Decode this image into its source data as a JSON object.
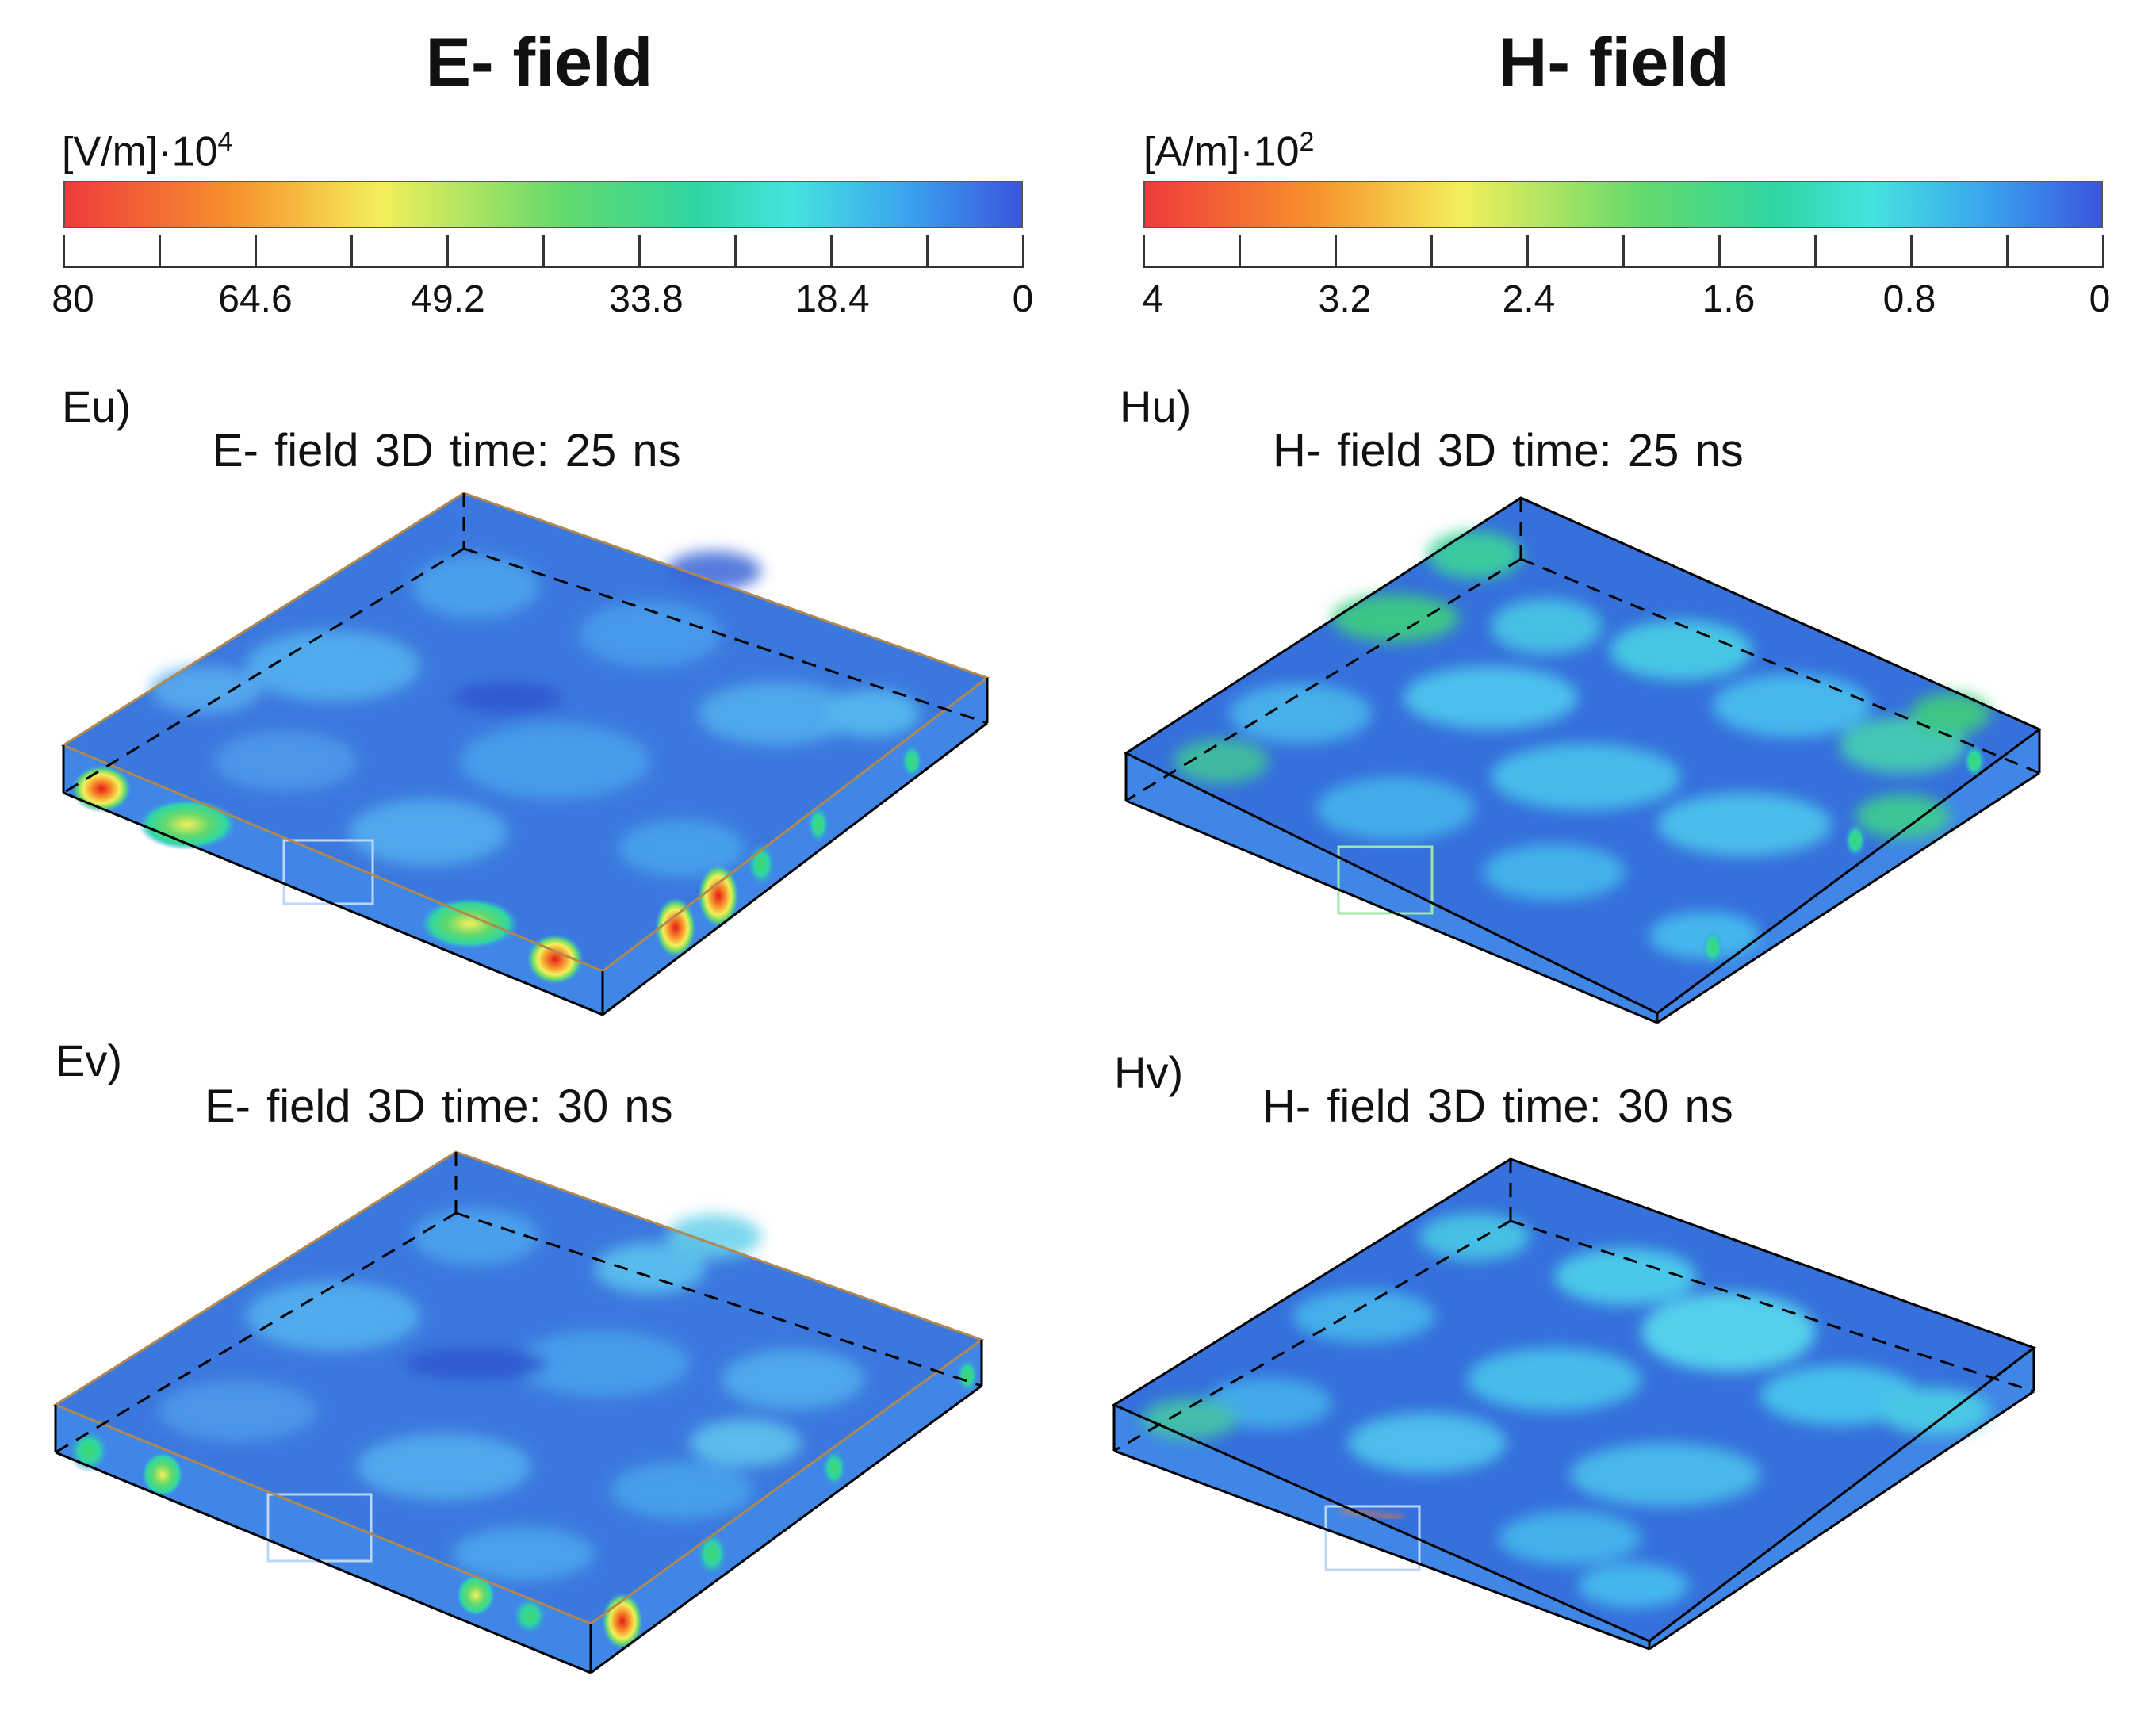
{
  "e_field": {
    "header": "E- field",
    "unit_base": "[V/m]·10",
    "unit_exp": "4",
    "ticks": [
      "80",
      "64.6",
      "49.2",
      "33.8",
      "18.4",
      "0"
    ]
  },
  "h_field": {
    "header": "H- field",
    "unit_base": "[A/m]·10",
    "unit_exp": "2",
    "ticks": [
      "4",
      "3.2",
      "2.4",
      "1.6",
      "0.8",
      "0"
    ]
  },
  "colormap": {
    "stops": [
      "#ef3b3b",
      "#f7932c",
      "#f4ef5a",
      "#63d96b",
      "#2fd6a3",
      "#45e3e0",
      "#3aa4f0",
      "#3a55dc"
    ]
  },
  "panels": {
    "eu": {
      "label": "Eu)",
      "title": "E- field   3D    time: 25 ns"
    },
    "hu": {
      "label": "Hu)",
      "title": "H- field   3D    time: 25 ns"
    },
    "ev": {
      "label": "Ev)",
      "title": "E- field   3D    time: 30 ns"
    },
    "hv": {
      "label": "Hv)",
      "title": "H- field   3D    time: 30 ns"
    }
  }
}
